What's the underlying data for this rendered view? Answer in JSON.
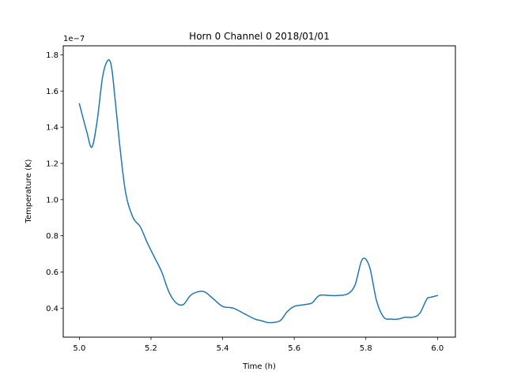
{
  "chart_data": {
    "type": "line",
    "title": "Horn 0 Channel 0 2018/01/01",
    "xlabel": "Time (h)",
    "ylabel": "Temperature (K)",
    "y_offset_text": "1e−7",
    "xlim": [
      4.955,
      6.05
    ],
    "ylim": [
      0.24,
      1.85
    ],
    "grid": false,
    "xticks": [
      5.0,
      5.2,
      5.4,
      5.6,
      5.8,
      6.0
    ],
    "xtick_labels": [
      "5.0",
      "5.2",
      "5.4",
      "5.6",
      "5.8",
      "6.0"
    ],
    "yticks": [
      0.4,
      0.6,
      0.8,
      1.0,
      1.2,
      1.4,
      1.6,
      1.8
    ],
    "ytick_labels": [
      "0.4",
      "0.6",
      "0.8",
      "1.0",
      "1.2",
      "1.4",
      "1.6",
      "1.8"
    ],
    "series": [
      {
        "color": "#1f77b4",
        "x": [
          5.0,
          5.02,
          5.035,
          5.05,
          5.065,
          5.08,
          5.09,
          5.1,
          5.115,
          5.13,
          5.15,
          5.17,
          5.19,
          5.21,
          5.23,
          5.25,
          5.27,
          5.29,
          5.31,
          5.33,
          5.35,
          5.375,
          5.4,
          5.43,
          5.46,
          5.49,
          5.51,
          5.53,
          5.56,
          5.58,
          5.6,
          5.63,
          5.65,
          5.67,
          5.7,
          5.72,
          5.75,
          5.77,
          5.79,
          5.81,
          5.83,
          5.85,
          5.87,
          5.89,
          5.91,
          5.93,
          5.95,
          5.97,
          5.98,
          6.0
        ],
        "y": [
          1.53,
          1.38,
          1.29,
          1.44,
          1.68,
          1.77,
          1.73,
          1.55,
          1.26,
          1.03,
          0.9,
          0.85,
          0.76,
          0.68,
          0.6,
          0.49,
          0.43,
          0.42,
          0.47,
          0.49,
          0.49,
          0.45,
          0.41,
          0.4,
          0.37,
          0.34,
          0.33,
          0.32,
          0.33,
          0.38,
          0.41,
          0.42,
          0.43,
          0.47,
          0.47,
          0.47,
          0.48,
          0.53,
          0.67,
          0.63,
          0.44,
          0.35,
          0.34,
          0.34,
          0.35,
          0.35,
          0.37,
          0.45,
          0.46,
          0.47
        ]
      }
    ]
  }
}
